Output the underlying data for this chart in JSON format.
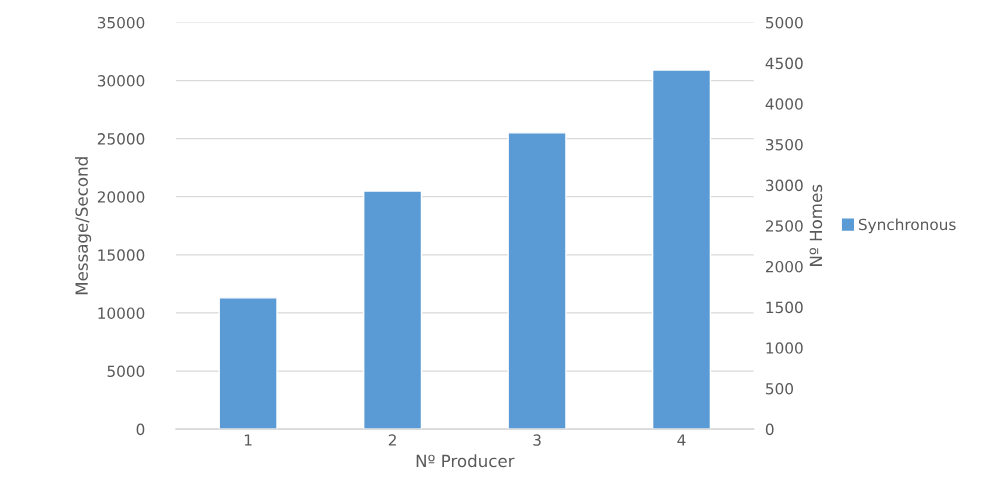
{
  "chart_data": {
    "type": "bar",
    "xlabel": "Nº Producer",
    "ylabel": "Message/Second",
    "y2label": "Nº Homes",
    "categories": [
      "1",
      "2",
      "3",
      "4"
    ],
    "series": [
      {
        "name": "Synchronous",
        "color": "#5b9bd5",
        "values": [
          11300,
          20500,
          25500,
          30900
        ]
      }
    ],
    "ylim": [
      0,
      35000
    ],
    "yticks": [
      0,
      5000,
      10000,
      15000,
      20000,
      25000,
      30000,
      35000
    ],
    "y2lim": [
      0,
      5000
    ],
    "y2ticks": [
      0,
      500,
      1000,
      1500,
      2000,
      2500,
      3000,
      3500,
      4000,
      4500,
      5000
    ],
    "grid": "y",
    "legend": "right"
  }
}
